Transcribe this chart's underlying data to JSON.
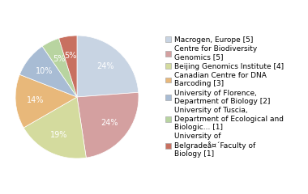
{
  "labels": [
    "Macrogen, Europe [5]",
    "Centre for Biodiversity\nGenomics [5]",
    "Beijing Genomics Institute [4]",
    "Canadian Centre for DNA\nBarcoding [3]",
    "University of Florence,\nDepartment of Biology [2]",
    "University of Tuscia,\nDepartment of Ecological and\nBiologic... [1]",
    "University of\nBelgradeå¤´Faculty of\nBiology [1]"
  ],
  "values": [
    5,
    5,
    4,
    3,
    2,
    1,
    1
  ],
  "colors": [
    "#c8d4e3",
    "#d4a0a0",
    "#d4db9e",
    "#e8b87a",
    "#a8bcd4",
    "#b8d4a0",
    "#c87060"
  ],
  "startangle": 90,
  "pct_fontsize": 7,
  "legend_fontsize": 6.5
}
